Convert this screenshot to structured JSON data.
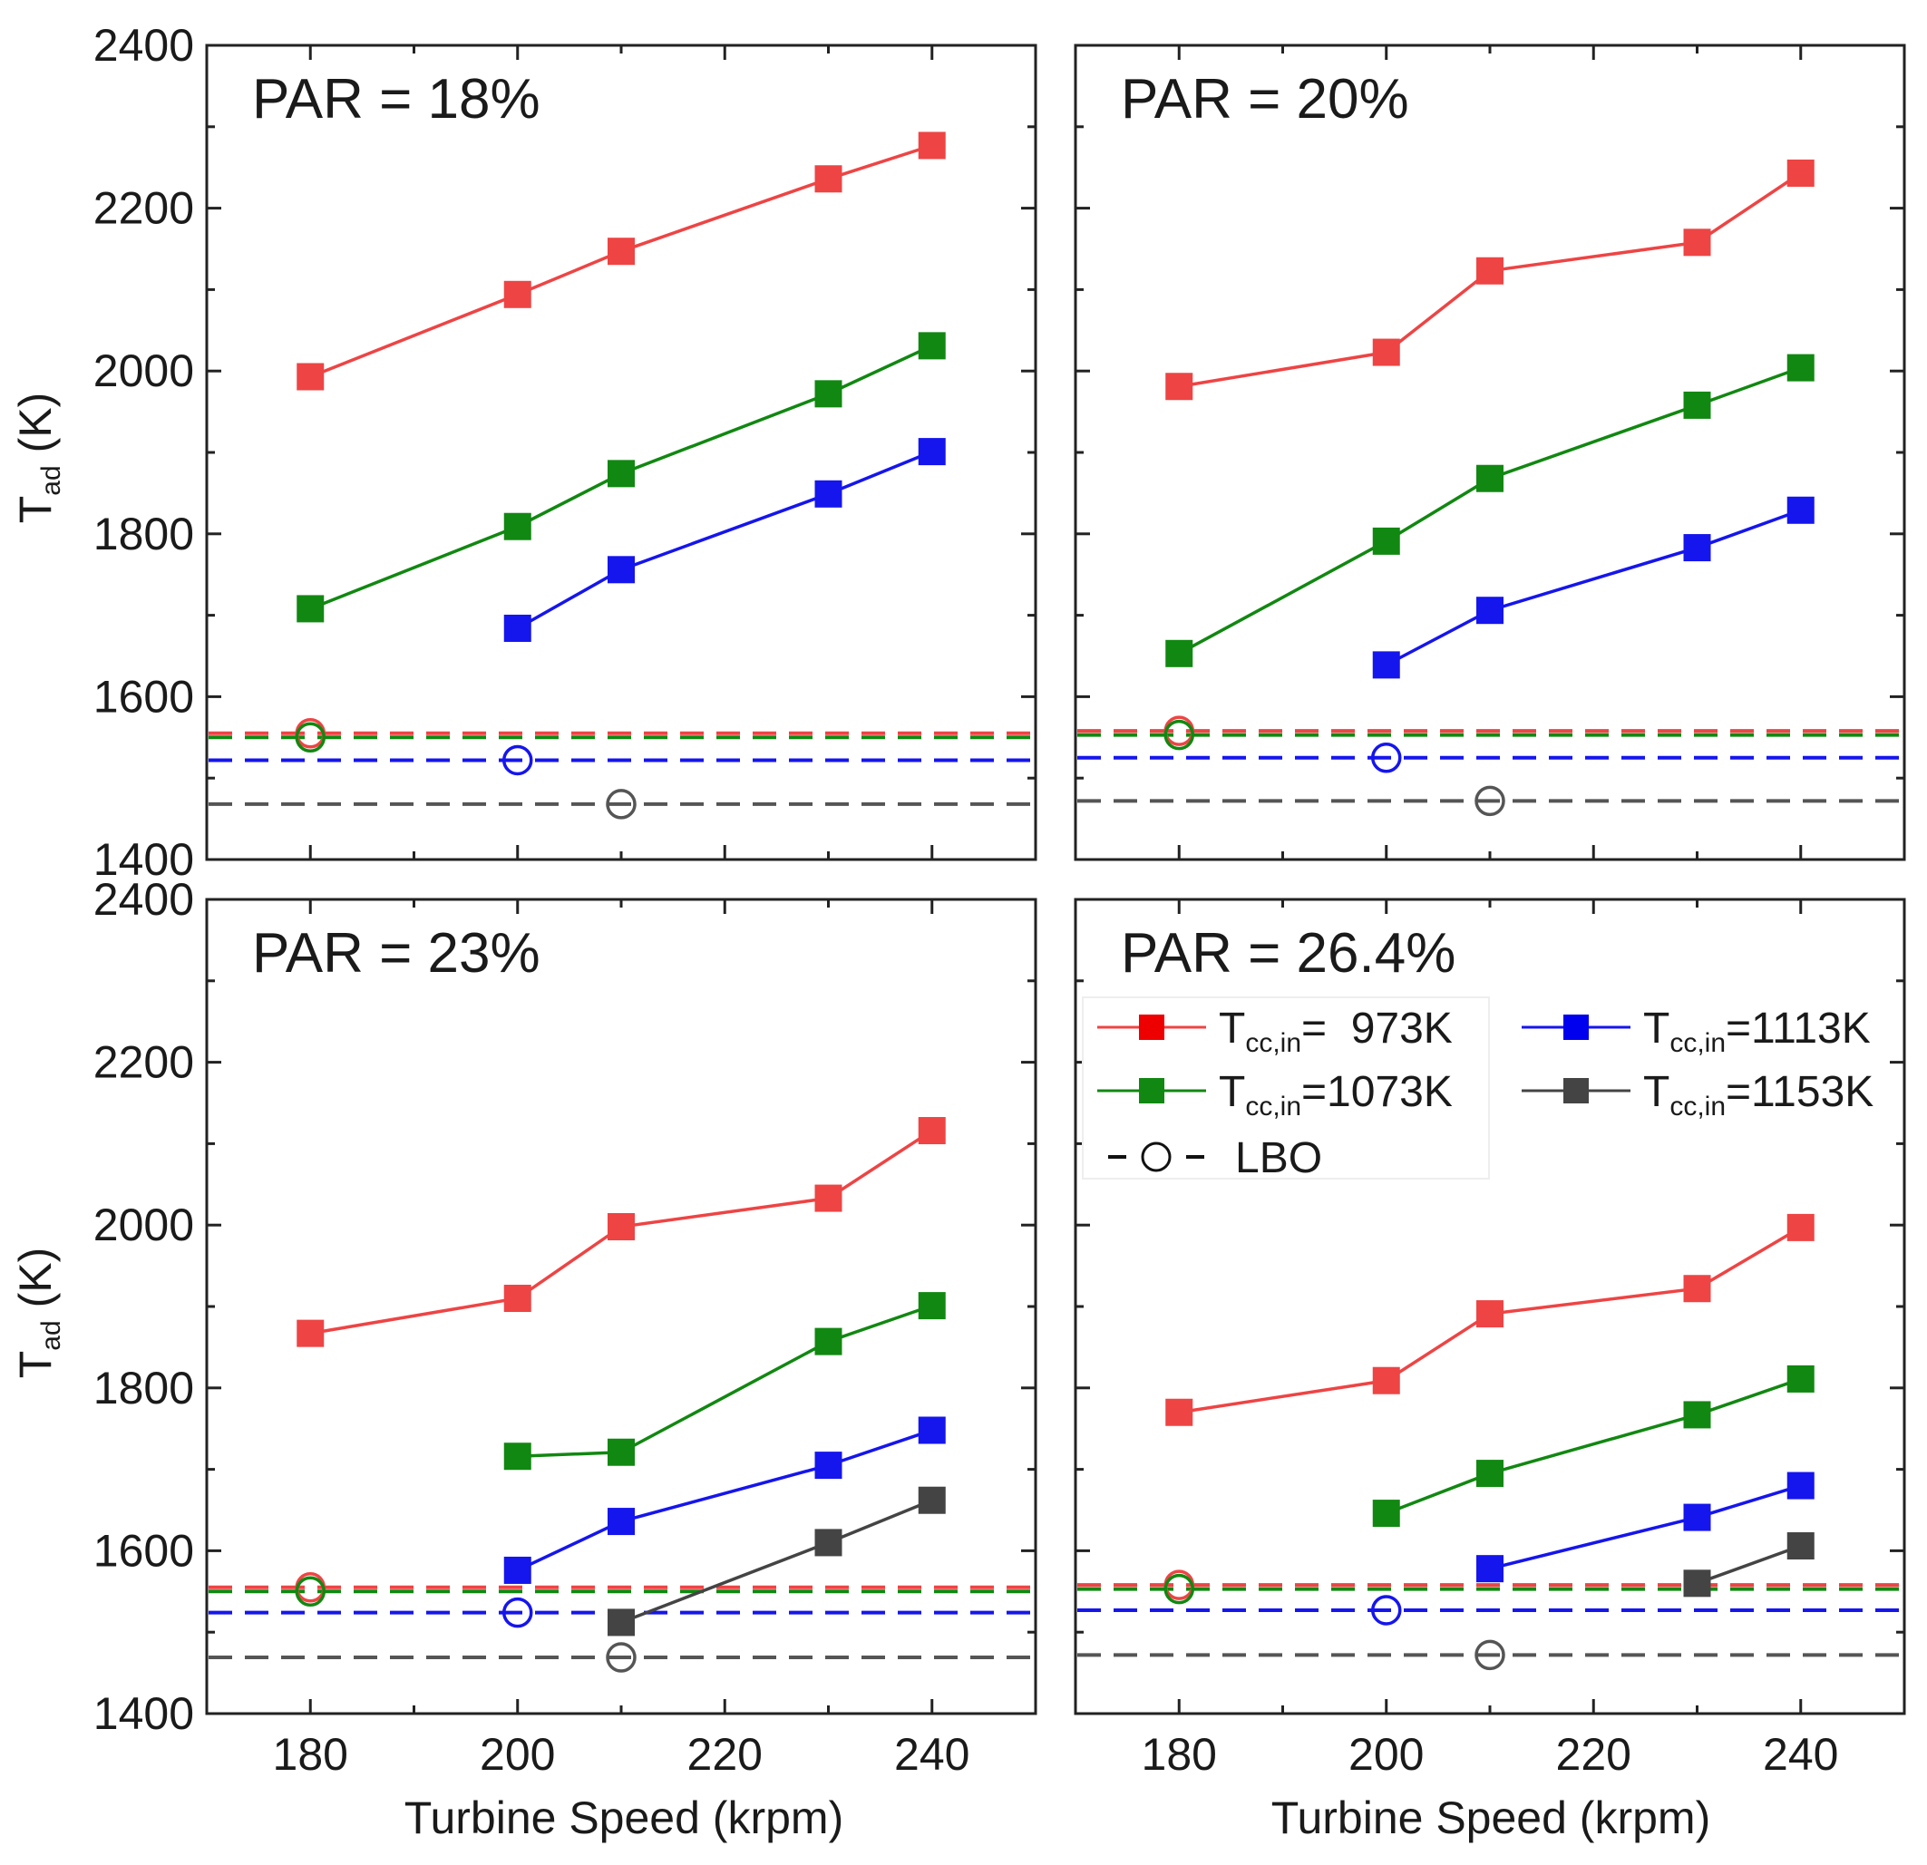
{
  "figure": {
    "shared_xlabel": "Turbine Speed (krpm)",
    "ylabel_main": "T",
    "ylabel_sub": "ad",
    "ylabel_unit": " (K)"
  },
  "legend": {
    "entries": [
      {
        "id": "t973",
        "symbol": "T",
        "sub": "cc,in",
        "value": "=  973K",
        "color": "#ee4444"
      },
      {
        "id": "t1113",
        "symbol": "T",
        "sub": "cc,in",
        "value": "=1113K",
        "color": "#1515ee"
      },
      {
        "id": "t1073",
        "symbol": "T",
        "sub": "cc,in",
        "value": "=1073K",
        "color": "#118811"
      },
      {
        "id": "t1153",
        "symbol": "T",
        "sub": "cc,in",
        "value": "=1153K",
        "color": "#444444"
      },
      {
        "id": "lbo",
        "label": "LBO",
        "color": "#111111"
      }
    ]
  },
  "chart_data": [
    {
      "type": "line",
      "title": "PAR = 18%",
      "xlabel": "",
      "ylabel": "Tad (K)",
      "xlim": [
        170,
        250
      ],
      "ylim": [
        1400,
        2400
      ],
      "xticks": [
        180,
        200,
        220,
        240
      ],
      "yticks": [
        1400,
        1600,
        1800,
        2000,
        2200,
        2400
      ],
      "show_x_ticklabels": false,
      "show_y_ticklabels": true,
      "series": [
        {
          "name": "Tcc,in=973K",
          "color": "#ee4444",
          "x": [
            180,
            200,
            210,
            230,
            240
          ],
          "values": [
            1993,
            2094,
            2147,
            2236,
            2277
          ]
        },
        {
          "name": "Tcc,in=1073K",
          "color": "#118811",
          "x": [
            180,
            200,
            210,
            230,
            240
          ],
          "values": [
            1708,
            1809,
            1874,
            1972,
            2031
          ]
        },
        {
          "name": "Tcc,in=1113K",
          "color": "#1515ee",
          "x": [
            200,
            210,
            230,
            240
          ],
          "values": [
            1684,
            1756,
            1849,
            1901
          ]
        }
      ],
      "lbo": [
        {
          "name": "Tcc,in=973K",
          "color": "#ee4444",
          "x": 180,
          "value": 1555
        },
        {
          "name": "Tcc,in=1073K",
          "color": "#118811",
          "x": 180,
          "value": 1550
        },
        {
          "name": "Tcc,in=1113K",
          "color": "#1515ee",
          "x": 200,
          "value": 1522
        },
        {
          "name": "Tcc,in=1153K",
          "color": "#555555",
          "x": 210,
          "value": 1468
        }
      ]
    },
    {
      "type": "line",
      "title": "PAR = 20%",
      "xlabel": "",
      "ylabel": "",
      "xlim": [
        170,
        250
      ],
      "ylim": [
        1400,
        2400
      ],
      "xticks": [
        180,
        200,
        220,
        240
      ],
      "yticks": [
        1400,
        1600,
        1800,
        2000,
        2200,
        2400
      ],
      "show_x_ticklabels": false,
      "show_y_ticklabels": false,
      "series": [
        {
          "name": "Tcc,in=973K",
          "color": "#ee4444",
          "x": [
            180,
            200,
            210,
            230,
            240
          ],
          "values": [
            1981,
            2023,
            2123,
            2158,
            2243
          ]
        },
        {
          "name": "Tcc,in=1073K",
          "color": "#118811",
          "x": [
            180,
            200,
            210,
            230,
            240
          ],
          "values": [
            1653,
            1791,
            1868,
            1958,
            2004
          ]
        },
        {
          "name": "Tcc,in=1113K",
          "color": "#1515ee",
          "x": [
            200,
            210,
            230,
            240
          ],
          "values": [
            1639,
            1706,
            1783,
            1829
          ]
        }
      ],
      "lbo": [
        {
          "name": "Tcc,in=973K",
          "color": "#ee4444",
          "x": 180,
          "value": 1558
        },
        {
          "name": "Tcc,in=1073K",
          "color": "#118811",
          "x": 180,
          "value": 1553
        },
        {
          "name": "Tcc,in=1113K",
          "color": "#1515ee",
          "x": 200,
          "value": 1525
        },
        {
          "name": "Tcc,in=1153K",
          "color": "#555555",
          "x": 210,
          "value": 1472
        }
      ]
    },
    {
      "type": "line",
      "title": "PAR = 23%",
      "xlabel": "Turbine Speed (krpm)",
      "ylabel": "Tad (K)",
      "xlim": [
        170,
        250
      ],
      "ylim": [
        1400,
        2400
      ],
      "xticks": [
        180,
        200,
        220,
        240
      ],
      "yticks": [
        1400,
        1600,
        1800,
        2000,
        2200,
        2400
      ],
      "show_x_ticklabels": true,
      "show_y_ticklabels": true,
      "series": [
        {
          "name": "Tcc,in=973K",
          "color": "#ee4444",
          "x": [
            180,
            200,
            210,
            230,
            240
          ],
          "values": [
            1867,
            1910,
            1998,
            2033,
            2116
          ]
        },
        {
          "name": "Tcc,in=1073K",
          "color": "#118811",
          "x": [
            200,
            210,
            230,
            240
          ],
          "values": [
            1716,
            1721,
            1857,
            1901
          ]
        },
        {
          "name": "Tcc,in=1113K",
          "color": "#1515ee",
          "x": [
            200,
            210,
            230,
            240
          ],
          "values": [
            1576,
            1636,
            1705,
            1748
          ]
        },
        {
          "name": "Tcc,in=1153K",
          "color": "#444444",
          "x": [
            210,
            230,
            240
          ],
          "values": [
            1512,
            1610,
            1662
          ]
        }
      ],
      "lbo": [
        {
          "name": "Tcc,in=973K",
          "color": "#ee4444",
          "x": 180,
          "value": 1555
        },
        {
          "name": "Tcc,in=1073K",
          "color": "#118811",
          "x": 180,
          "value": 1550
        },
        {
          "name": "Tcc,in=1113K",
          "color": "#1515ee",
          "x": 200,
          "value": 1524
        },
        {
          "name": "Tcc,in=1153K",
          "color": "#555555",
          "x": 210,
          "value": 1469
        }
      ]
    },
    {
      "type": "line",
      "title": "PAR = 26.4%",
      "xlabel": "Turbine Speed (krpm)",
      "ylabel": "",
      "xlim": [
        170,
        250
      ],
      "ylim": [
        1400,
        2400
      ],
      "xticks": [
        180,
        200,
        220,
        240
      ],
      "yticks": [
        1400,
        1600,
        1800,
        2000,
        2200,
        2400
      ],
      "show_x_ticklabels": true,
      "show_y_ticklabels": false,
      "legend_position": "upper-left",
      "series": [
        {
          "name": "Tcc,in=973K",
          "color": "#ee4444",
          "x": [
            180,
            200,
            210,
            230,
            240
          ],
          "values": [
            1770,
            1809,
            1891,
            1922,
            1997
          ]
        },
        {
          "name": "Tcc,in=1073K",
          "color": "#118811",
          "x": [
            200,
            210,
            230,
            240
          ],
          "values": [
            1646,
            1695,
            1767,
            1811
          ]
        },
        {
          "name": "Tcc,in=1113K",
          "color": "#1515ee",
          "x": [
            210,
            230,
            240
          ],
          "values": [
            1578,
            1641,
            1680
          ]
        },
        {
          "name": "Tcc,in=1153K",
          "color": "#444444",
          "x": [
            230,
            240
          ],
          "values": [
            1560,
            1606
          ]
        }
      ],
      "lbo": [
        {
          "name": "Tcc,in=973K",
          "color": "#ee4444",
          "x": 180,
          "value": 1558
        },
        {
          "name": "Tcc,in=1073K",
          "color": "#118811",
          "x": 180,
          "value": 1553
        },
        {
          "name": "Tcc,in=1113K",
          "color": "#1515ee",
          "x": 200,
          "value": 1527
        },
        {
          "name": "Tcc,in=1153K",
          "color": "#555555",
          "x": 210,
          "value": 1472
        }
      ]
    }
  ]
}
